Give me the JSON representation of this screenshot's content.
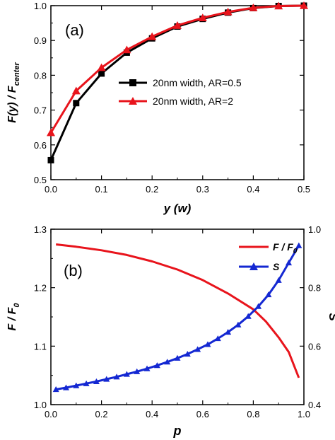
{
  "chart_data": [
    {
      "type": "line",
      "panel_label": "(a)",
      "xlabel": "y (w)",
      "ylabel": "F(y) / F",
      "ylabel_subscript": "center",
      "xlim": [
        0,
        0.5
      ],
      "ylim": [
        0.5,
        1.0
      ],
      "xticks": [
        0.0,
        0.1,
        0.2,
        0.3,
        0.4,
        0.5
      ],
      "yticks": [
        0.5,
        0.6,
        0.7,
        0.8,
        0.9,
        1.0
      ],
      "xtick_labels": [
        "0.0",
        "0.1",
        "0.2",
        "0.3",
        "0.4",
        "0.5"
      ],
      "ytick_labels": [
        "0.5",
        "0.6",
        "0.7",
        "0.8",
        "0.9",
        "1.0"
      ],
      "legend_position": "center-right",
      "series": [
        {
          "name": "20nm width, AR=0.5",
          "color": "#000000",
          "marker": "square",
          "x": [
            0.0,
            0.05,
            0.1,
            0.15,
            0.2,
            0.25,
            0.3,
            0.35,
            0.4,
            0.45,
            0.5
          ],
          "y": [
            0.556,
            0.72,
            0.805,
            0.865,
            0.906,
            0.94,
            0.962,
            0.98,
            0.993,
            0.999,
            1.0
          ]
        },
        {
          "name": "20nm width, AR=2",
          "color": "#e8141c",
          "marker": "triangle",
          "x": [
            0.0,
            0.05,
            0.1,
            0.15,
            0.2,
            0.25,
            0.3,
            0.35,
            0.4,
            0.45,
            0.5
          ],
          "y": [
            0.635,
            0.755,
            0.822,
            0.873,
            0.911,
            0.943,
            0.965,
            0.982,
            0.994,
            0.999,
            1.0
          ]
        }
      ]
    },
    {
      "type": "line",
      "panel_label": "(b)",
      "xlabel": "p",
      "ylabel": "F / F",
      "ylabel_subscript": "0",
      "ylabel_right": "S",
      "xlim": [
        0,
        1.0
      ],
      "ylim": [
        1.0,
        1.3
      ],
      "ylim_right": [
        0.4,
        1.0
      ],
      "xticks": [
        0.0,
        0.2,
        0.4,
        0.6,
        0.8,
        1.0
      ],
      "yticks": [
        1.0,
        1.1,
        1.2,
        1.3
      ],
      "yticks_right": [
        0.4,
        0.6,
        0.8,
        1.0
      ],
      "xtick_labels": [
        "0.0",
        "0.2",
        "0.4",
        "0.6",
        "0.8",
        "1.0"
      ],
      "ytick_labels": [
        "1.0",
        "1.1",
        "1.2",
        "1.3"
      ],
      "ytick_labels_right": [
        "0.4",
        "0.6",
        "0.8",
        "1.0"
      ],
      "legend_position": "top-right",
      "series": [
        {
          "name": "F / F",
          "name_subscript": "0",
          "color": "#e8141c",
          "axis": "left",
          "marker": "none",
          "x": [
            0.02,
            0.1,
            0.2,
            0.3,
            0.4,
            0.5,
            0.6,
            0.7,
            0.8,
            0.85,
            0.9,
            0.94,
            0.98
          ],
          "y": [
            1.274,
            1.27,
            1.264,
            1.256,
            1.245,
            1.231,
            1.213,
            1.19,
            1.163,
            1.142,
            1.115,
            1.09,
            1.046
          ]
        },
        {
          "name": "S",
          "color": "#1428d2",
          "axis": "right",
          "marker": "triangle",
          "x": [
            0.02,
            0.06,
            0.1,
            0.14,
            0.18,
            0.22,
            0.26,
            0.3,
            0.34,
            0.38,
            0.42,
            0.46,
            0.5,
            0.54,
            0.58,
            0.62,
            0.66,
            0.7,
            0.74,
            0.78,
            0.82,
            0.86,
            0.9,
            0.94,
            0.98
          ],
          "y": [
            0.452,
            0.458,
            0.465,
            0.472,
            0.479,
            0.487,
            0.495,
            0.504,
            0.513,
            0.523,
            0.534,
            0.546,
            0.559,
            0.573,
            0.589,
            0.606,
            0.626,
            0.648,
            0.673,
            0.702,
            0.736,
            0.776,
            0.825,
            0.885,
            0.944
          ]
        }
      ]
    }
  ]
}
